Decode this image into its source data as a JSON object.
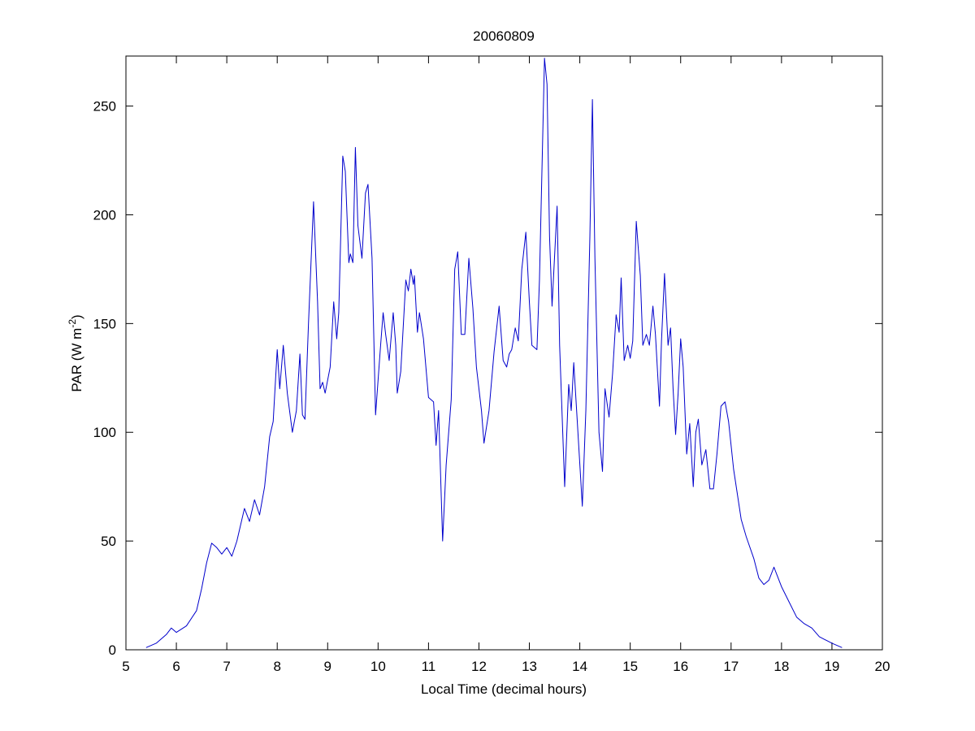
{
  "chart_data": {
    "type": "line",
    "title": "20060809",
    "xlabel": "Local Time (decimal hours)",
    "ylabel": {
      "text": "PAR (W m",
      "superscript": "-2",
      "suffix": ")"
    },
    "x": [
      5.4,
      5.6,
      5.8,
      5.9,
      6.0,
      6.2,
      6.4,
      6.5,
      6.6,
      6.7,
      6.8,
      6.9,
      7.0,
      7.1,
      7.2,
      7.3,
      7.35,
      7.45,
      7.55,
      7.65,
      7.75,
      7.85,
      7.92,
      8.0,
      8.05,
      8.12,
      8.2,
      8.3,
      8.38,
      8.45,
      8.5,
      8.55,
      8.62,
      8.72,
      8.8,
      8.85,
      8.9,
      8.95,
      9.05,
      9.12,
      9.18,
      9.22,
      9.3,
      9.35,
      9.42,
      9.45,
      9.5,
      9.55,
      9.6,
      9.68,
      9.75,
      9.8,
      9.88,
      9.95,
      10.05,
      10.1,
      10.15,
      10.22,
      10.3,
      10.35,
      10.38,
      10.45,
      10.55,
      10.6,
      10.65,
      10.7,
      10.72,
      10.78,
      10.82,
      10.9,
      11.0,
      11.1,
      11.15,
      11.2,
      11.28,
      11.35,
      11.45,
      11.52,
      11.58,
      11.65,
      11.72,
      11.8,
      11.88,
      11.95,
      12.05,
      12.1,
      12.2,
      12.3,
      12.4,
      12.48,
      12.55,
      12.6,
      12.65,
      12.72,
      12.78,
      12.85,
      12.93,
      13.0,
      13.05,
      13.15,
      13.2,
      13.3,
      13.35,
      13.4,
      13.45,
      13.55,
      13.6,
      13.7,
      13.78,
      13.83,
      13.88,
      13.95,
      14.05,
      14.12,
      14.2,
      14.25,
      14.3,
      14.38,
      14.45,
      14.5,
      14.58,
      14.65,
      14.72,
      14.78,
      14.82,
      14.88,
      14.95,
      15.0,
      15.05,
      15.12,
      15.2,
      15.25,
      15.32,
      15.38,
      15.45,
      15.5,
      15.58,
      15.62,
      15.68,
      15.75,
      15.8,
      15.85,
      15.9,
      15.95,
      16.0,
      16.05,
      16.12,
      16.18,
      16.25,
      16.3,
      16.35,
      16.42,
      16.5,
      16.58,
      16.65,
      16.72,
      16.8,
      16.88,
      16.95,
      17.05,
      17.2,
      17.3,
      17.45,
      17.55,
      17.65,
      17.75,
      17.85,
      17.9,
      18.0,
      18.15,
      18.3,
      18.45,
      18.6,
      18.75,
      19.0,
      19.2
    ],
    "series": [
      {
        "name": "PAR",
        "color": "#0000cc",
        "values": [
          1,
          3,
          7,
          10,
          8,
          11,
          18,
          28,
          40,
          49,
          47,
          44,
          47,
          43,
          50,
          60,
          65,
          59,
          69,
          62,
          75,
          98,
          105,
          138,
          120,
          140,
          118,
          100,
          110,
          136,
          108,
          106,
          150,
          206,
          160,
          120,
          123,
          118,
          130,
          160,
          143,
          155,
          227,
          220,
          178,
          182,
          178,
          231,
          195,
          180,
          210,
          214,
          180,
          108,
          140,
          155,
          145,
          133,
          155,
          140,
          118,
          128,
          170,
          165,
          175,
          168,
          172,
          146,
          155,
          143,
          116,
          114,
          94,
          110,
          50,
          85,
          115,
          175,
          183,
          145,
          145,
          180,
          157,
          130,
          110,
          95,
          110,
          137,
          158,
          133,
          130,
          136,
          138,
          148,
          142,
          175,
          192,
          160,
          140,
          138,
          170,
          272,
          260,
          190,
          158,
          204,
          140,
          75,
          122,
          110,
          132,
          105,
          66,
          110,
          190,
          253,
          180,
          100,
          82,
          120,
          107,
          127,
          154,
          146,
          171,
          133,
          140,
          134,
          142,
          197,
          172,
          140,
          145,
          140,
          158,
          145,
          112,
          142,
          173,
          140,
          148,
          120,
          99,
          118,
          143,
          130,
          90,
          104,
          75,
          100,
          106,
          85,
          92,
          74,
          74,
          90,
          112,
          114,
          105,
          83,
          60,
          52,
          42,
          33,
          30,
          32,
          38,
          35,
          29,
          22,
          15,
          12,
          10,
          6,
          3,
          1
        ]
      }
    ],
    "xlim": [
      5,
      20
    ],
    "xticks": [
      5,
      6,
      7,
      8,
      9,
      10,
      11,
      12,
      13,
      14,
      15,
      16,
      17,
      18,
      19,
      20
    ],
    "ylim": [
      0,
      273
    ],
    "yticks": [
      0,
      50,
      100,
      150,
      200,
      250
    ],
    "grid": false
  }
}
